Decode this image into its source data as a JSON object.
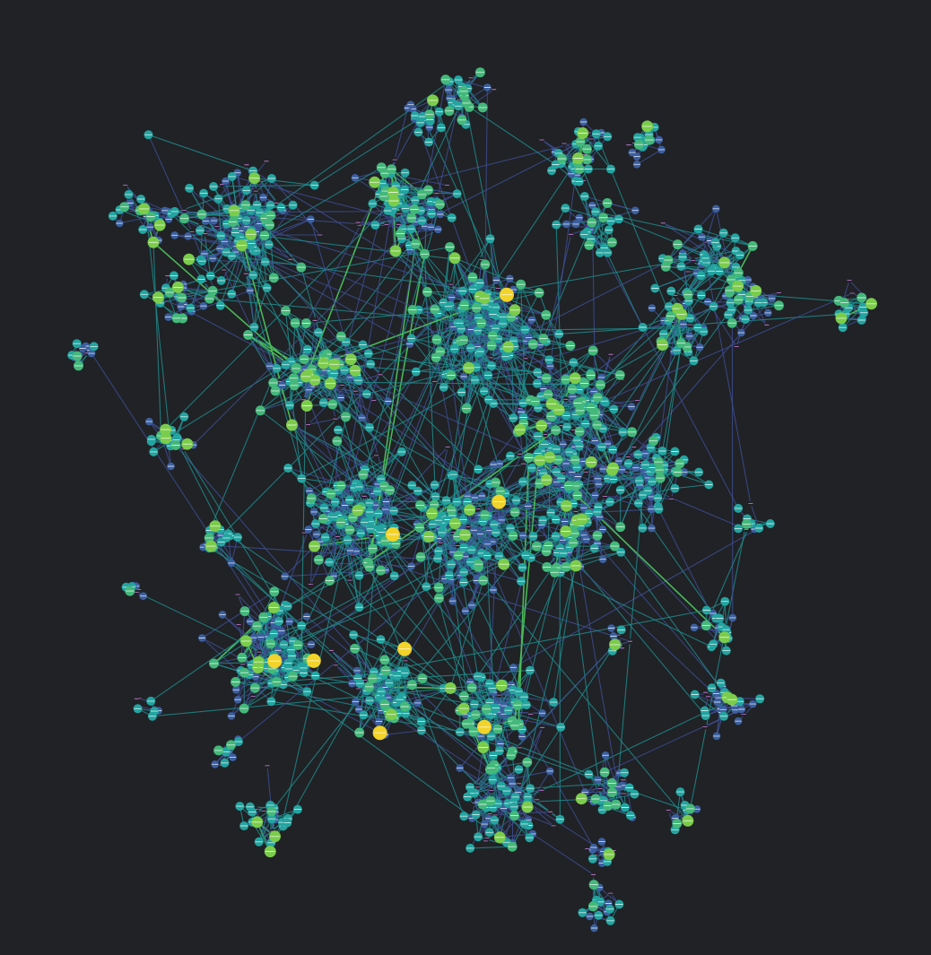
{
  "graph": {
    "background": "#202226",
    "palette": {
      "low": "#6b63c5",
      "mid_low": "#3b5fa0",
      "mid": "#23a4a0",
      "mid_high": "#44b87a",
      "high": "#7ccc4c",
      "top": "#f1d32a",
      "tiny_outline": "#d183e0"
    },
    "edge_palette": {
      "low": "#3e4f94",
      "mid": "#1f8f8f",
      "high": "#4cc05a",
      "top": "#f2d21f"
    },
    "node_marker": "horizontal-dash",
    "random_seed": 1729
  }
}
